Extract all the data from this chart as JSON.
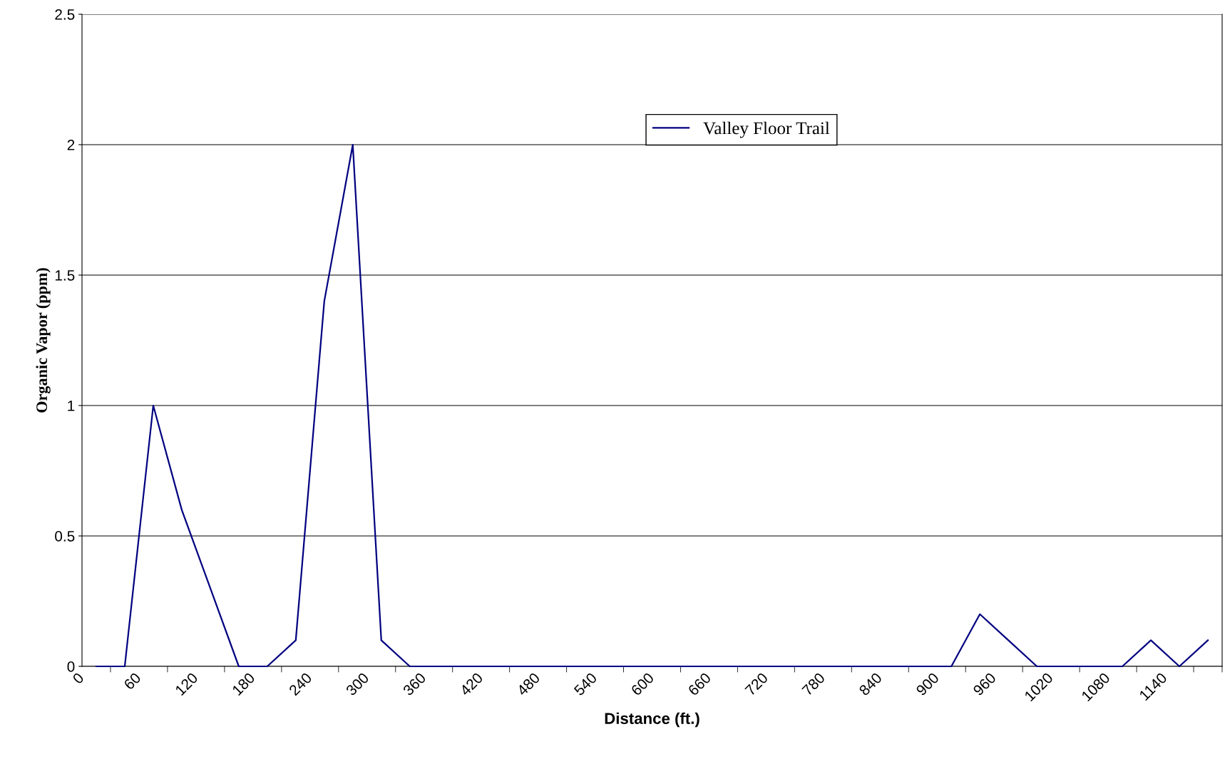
{
  "chart_data": {
    "type": "line",
    "xlabel": "Distance (ft.)",
    "ylabel": "Organic Vapor (ppm)",
    "x": [
      15,
      45,
      75,
      105,
      135,
      165,
      195,
      225,
      255,
      285,
      315,
      345,
      375,
      405,
      435,
      465,
      495,
      525,
      555,
      585,
      615,
      645,
      675,
      705,
      735,
      765,
      795,
      825,
      855,
      885,
      915,
      945,
      975,
      1005,
      1035,
      1065,
      1095,
      1125,
      1155,
      1185
    ],
    "xlim": [
      0,
      1200
    ],
    "xticks": [
      0,
      60,
      120,
      180,
      240,
      300,
      360,
      420,
      480,
      540,
      600,
      660,
      720,
      780,
      840,
      900,
      960,
      1020,
      1080,
      1140
    ],
    "series": [
      {
        "name": "Valley Floor Trail",
        "color": "#000080",
        "values": [
          0,
          0,
          1.0,
          0.6,
          0.3,
          0,
          0,
          0.1,
          1.4,
          2.0,
          0.1,
          0,
          0,
          0,
          0,
          0,
          0,
          0,
          0,
          0,
          0,
          0,
          0,
          0,
          0,
          0,
          0,
          0,
          0,
          0,
          0,
          0.2,
          0.1,
          0,
          0,
          0,
          0,
          0.1,
          0,
          0.1
        ]
      }
    ],
    "ylim": [
      0,
      2.5
    ],
    "yticks": [
      0,
      0.5,
      1,
      1.5,
      2,
      2.5
    ],
    "grid": "y",
    "legend": "top right",
    "marker": "none",
    "line_style": "solid"
  }
}
